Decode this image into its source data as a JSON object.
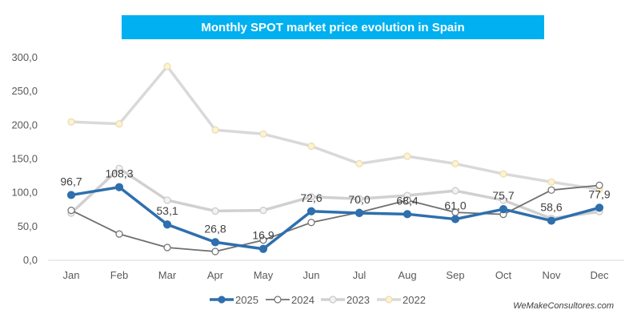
{
  "chart_data": {
    "type": "line",
    "title": "Monthly SPOT market price evolution in Spain",
    "xlabel": "",
    "ylabel": "",
    "categories": [
      "Jan",
      "Feb",
      "Mar",
      "Apr",
      "May",
      "Jun",
      "Jul",
      "Aug",
      "Sep",
      "Oct",
      "Nov",
      "Dec"
    ],
    "ylim": [
      0,
      300
    ],
    "yticks": [
      "0,0",
      "50,0",
      "100,0",
      "150,0",
      "200,0",
      "250,0",
      "300,0"
    ],
    "ytick_values": [
      0,
      50,
      100,
      150,
      200,
      250,
      300
    ],
    "grid": false,
    "legend_position": "bottom",
    "series": [
      {
        "name": "2022",
        "color": "#d9d9d9",
        "marker_fill": "#fff2cc",
        "marker_stroke": "#e8dcb8",
        "values": [
          205,
          202,
          287,
          193,
          187,
          169,
          143,
          154,
          143,
          128,
          116,
          105
        ],
        "labels": null
      },
      {
        "name": "2023",
        "color": "#d0d0d0",
        "marker_fill": "#f2f2f2",
        "marker_stroke": "#c8c8c8",
        "values": [
          70,
          136,
          89,
          73,
          74,
          94,
          91,
          96,
          103,
          89,
          62,
          72
        ],
        "labels": null
      },
      {
        "name": "2024",
        "color": "#6f6f6f",
        "marker_fill": "#ffffff",
        "marker_stroke": "#6f6f6f",
        "values": [
          74,
          39,
          19,
          13,
          30,
          56,
          71,
          89,
          71,
          68,
          104,
          111
        ],
        "labels": null
      },
      {
        "name": "2025",
        "color": "#2e6fad",
        "marker_fill": "#2e6fad",
        "marker_stroke": "#2e6fad",
        "values": [
          96.7,
          108.3,
          53.1,
          26.8,
          16.9,
          72.6,
          70.0,
          68.4,
          61.0,
          75.7,
          58.6,
          77.9
        ],
        "labels": [
          "96,7",
          "108,3",
          "53,1",
          "26,8",
          "16,9",
          "72,6",
          "70,0",
          "68,4",
          "61,0",
          "75,7",
          "58,6",
          "77,9"
        ]
      }
    ],
    "legend": [
      "2025",
      "2024",
      "2023",
      "2022"
    ]
  },
  "footer": "WeMakeConsultores.com"
}
